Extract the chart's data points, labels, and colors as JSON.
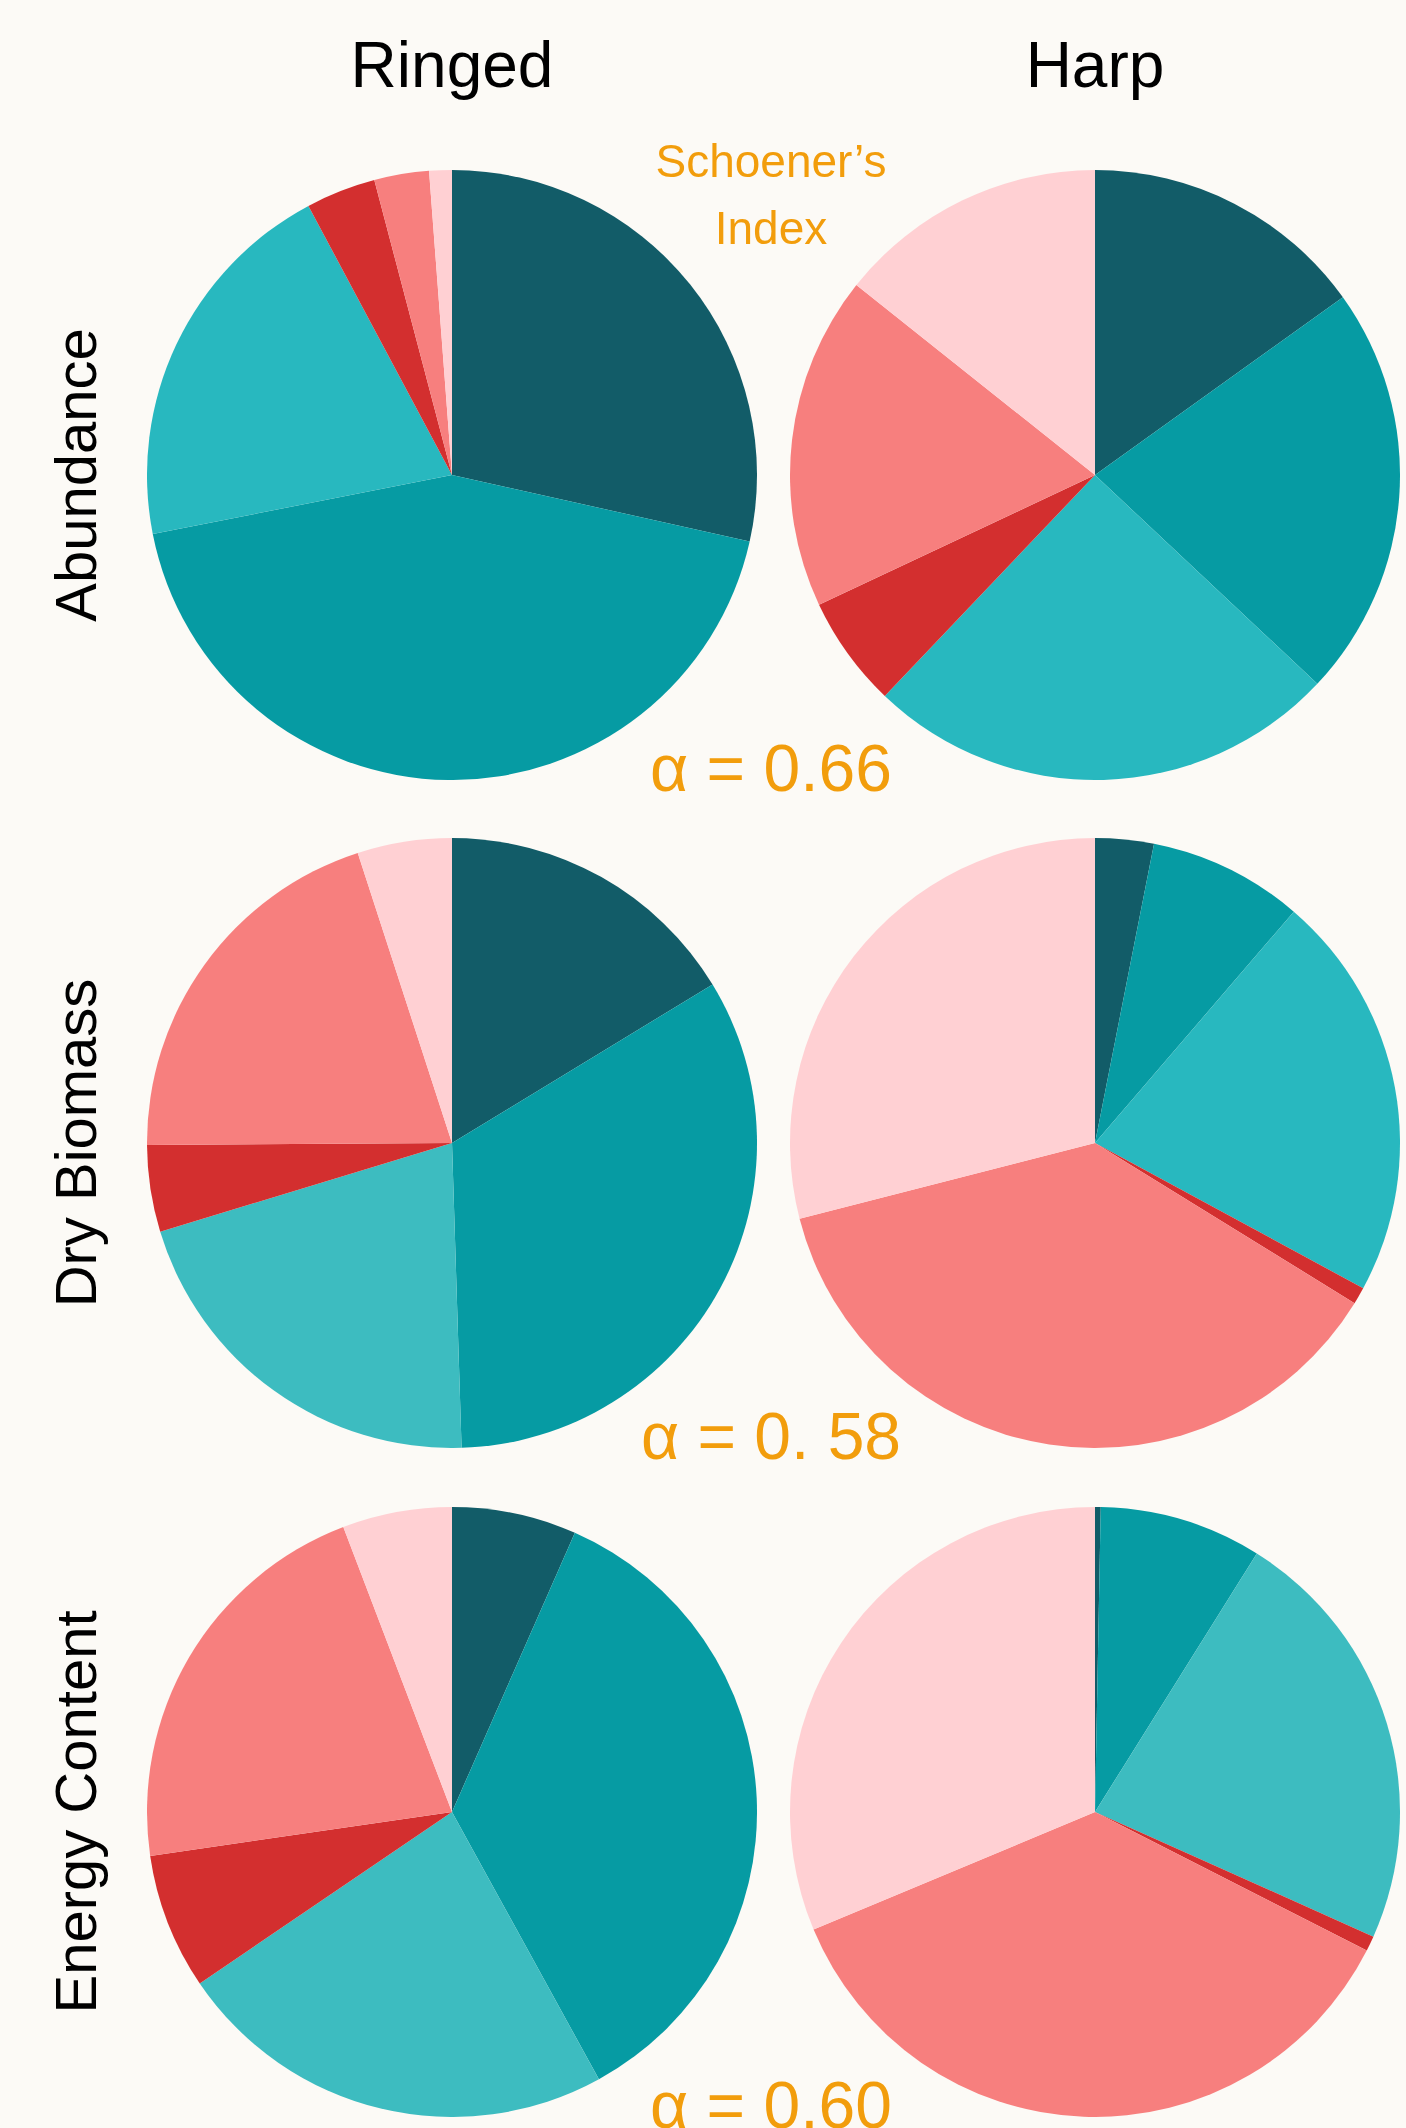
{
  "chart_data": [
    {
      "type": "pie",
      "title": "Ringed",
      "ylabel": "Abundance",
      "categories": [
        null,
        null,
        null,
        null,
        null,
        null
      ],
      "values": [
        28.5,
        43.4,
        20.3,
        3.7,
        2.9,
        1.2
      ],
      "colors": [
        "#125c68",
        "#069ba3",
        "#28b8bf",
        "#d32f2f",
        "#f77f7e",
        "#ffd0d3"
      ]
    },
    {
      "type": "pie",
      "title": "Harp",
      "annotations": [
        "Schoener’s Index",
        "α = 0.66"
      ],
      "categories": [
        null,
        null,
        null,
        null,
        null,
        null
      ],
      "values": [
        15.1,
        21.9,
        25.1,
        5.9,
        17.7,
        14.3
      ],
      "colors": [
        "#125c68",
        "#069ba3",
        "#28b8bf",
        "#d32f2f",
        "#f77f7e",
        "#ffd0d3"
      ]
    },
    {
      "type": "pie",
      "ylabel": "Dry Biomass",
      "categories": [
        null,
        null,
        null,
        null,
        null,
        null
      ],
      "values": [
        16.3,
        33.2,
        20.8,
        4.6,
        20.1,
        5.0
      ],
      "colors": [
        "#125c68",
        "#069ba3",
        "#3dbcc0",
        "#d32f2f",
        "#f77f7e",
        "#ffd0d3"
      ]
    },
    {
      "type": "pie",
      "annotations": [
        "α = 0. 58"
      ],
      "categories": [
        null,
        null,
        null,
        null,
        null,
        null
      ],
      "values": [
        3.1,
        8.2,
        21.6,
        0.9,
        37.2,
        29.0
      ],
      "colors": [
        "#125c68",
        "#069ba3",
        "#28b8bf",
        "#d32f2f",
        "#f77f7e",
        "#ffd0d3"
      ]
    },
    {
      "type": "pie",
      "ylabel": "Energy Content",
      "categories": [
        null,
        null,
        null,
        null,
        null,
        null
      ],
      "values": [
        6.6,
        35.4,
        23.5,
        7.2,
        21.5,
        5.8
      ],
      "colors": [
        "#125c68",
        "#069ba3",
        "#3dbcc0",
        "#d32f2f",
        "#f77f7e",
        "#ffd0d3"
      ]
    },
    {
      "type": "pie",
      "annotations": [
        "α = 0.60"
      ],
      "categories": [
        null,
        null,
        null,
        null,
        null,
        null
      ],
      "values": [
        0.3,
        8.6,
        22.8,
        0.8,
        36.2,
        31.3
      ],
      "colors": [
        "#125c68",
        "#069ba3",
        "#3dbcc0",
        "#d32f2f",
        "#f77f7e",
        "#ffd0d3"
      ]
    }
  ]
}
